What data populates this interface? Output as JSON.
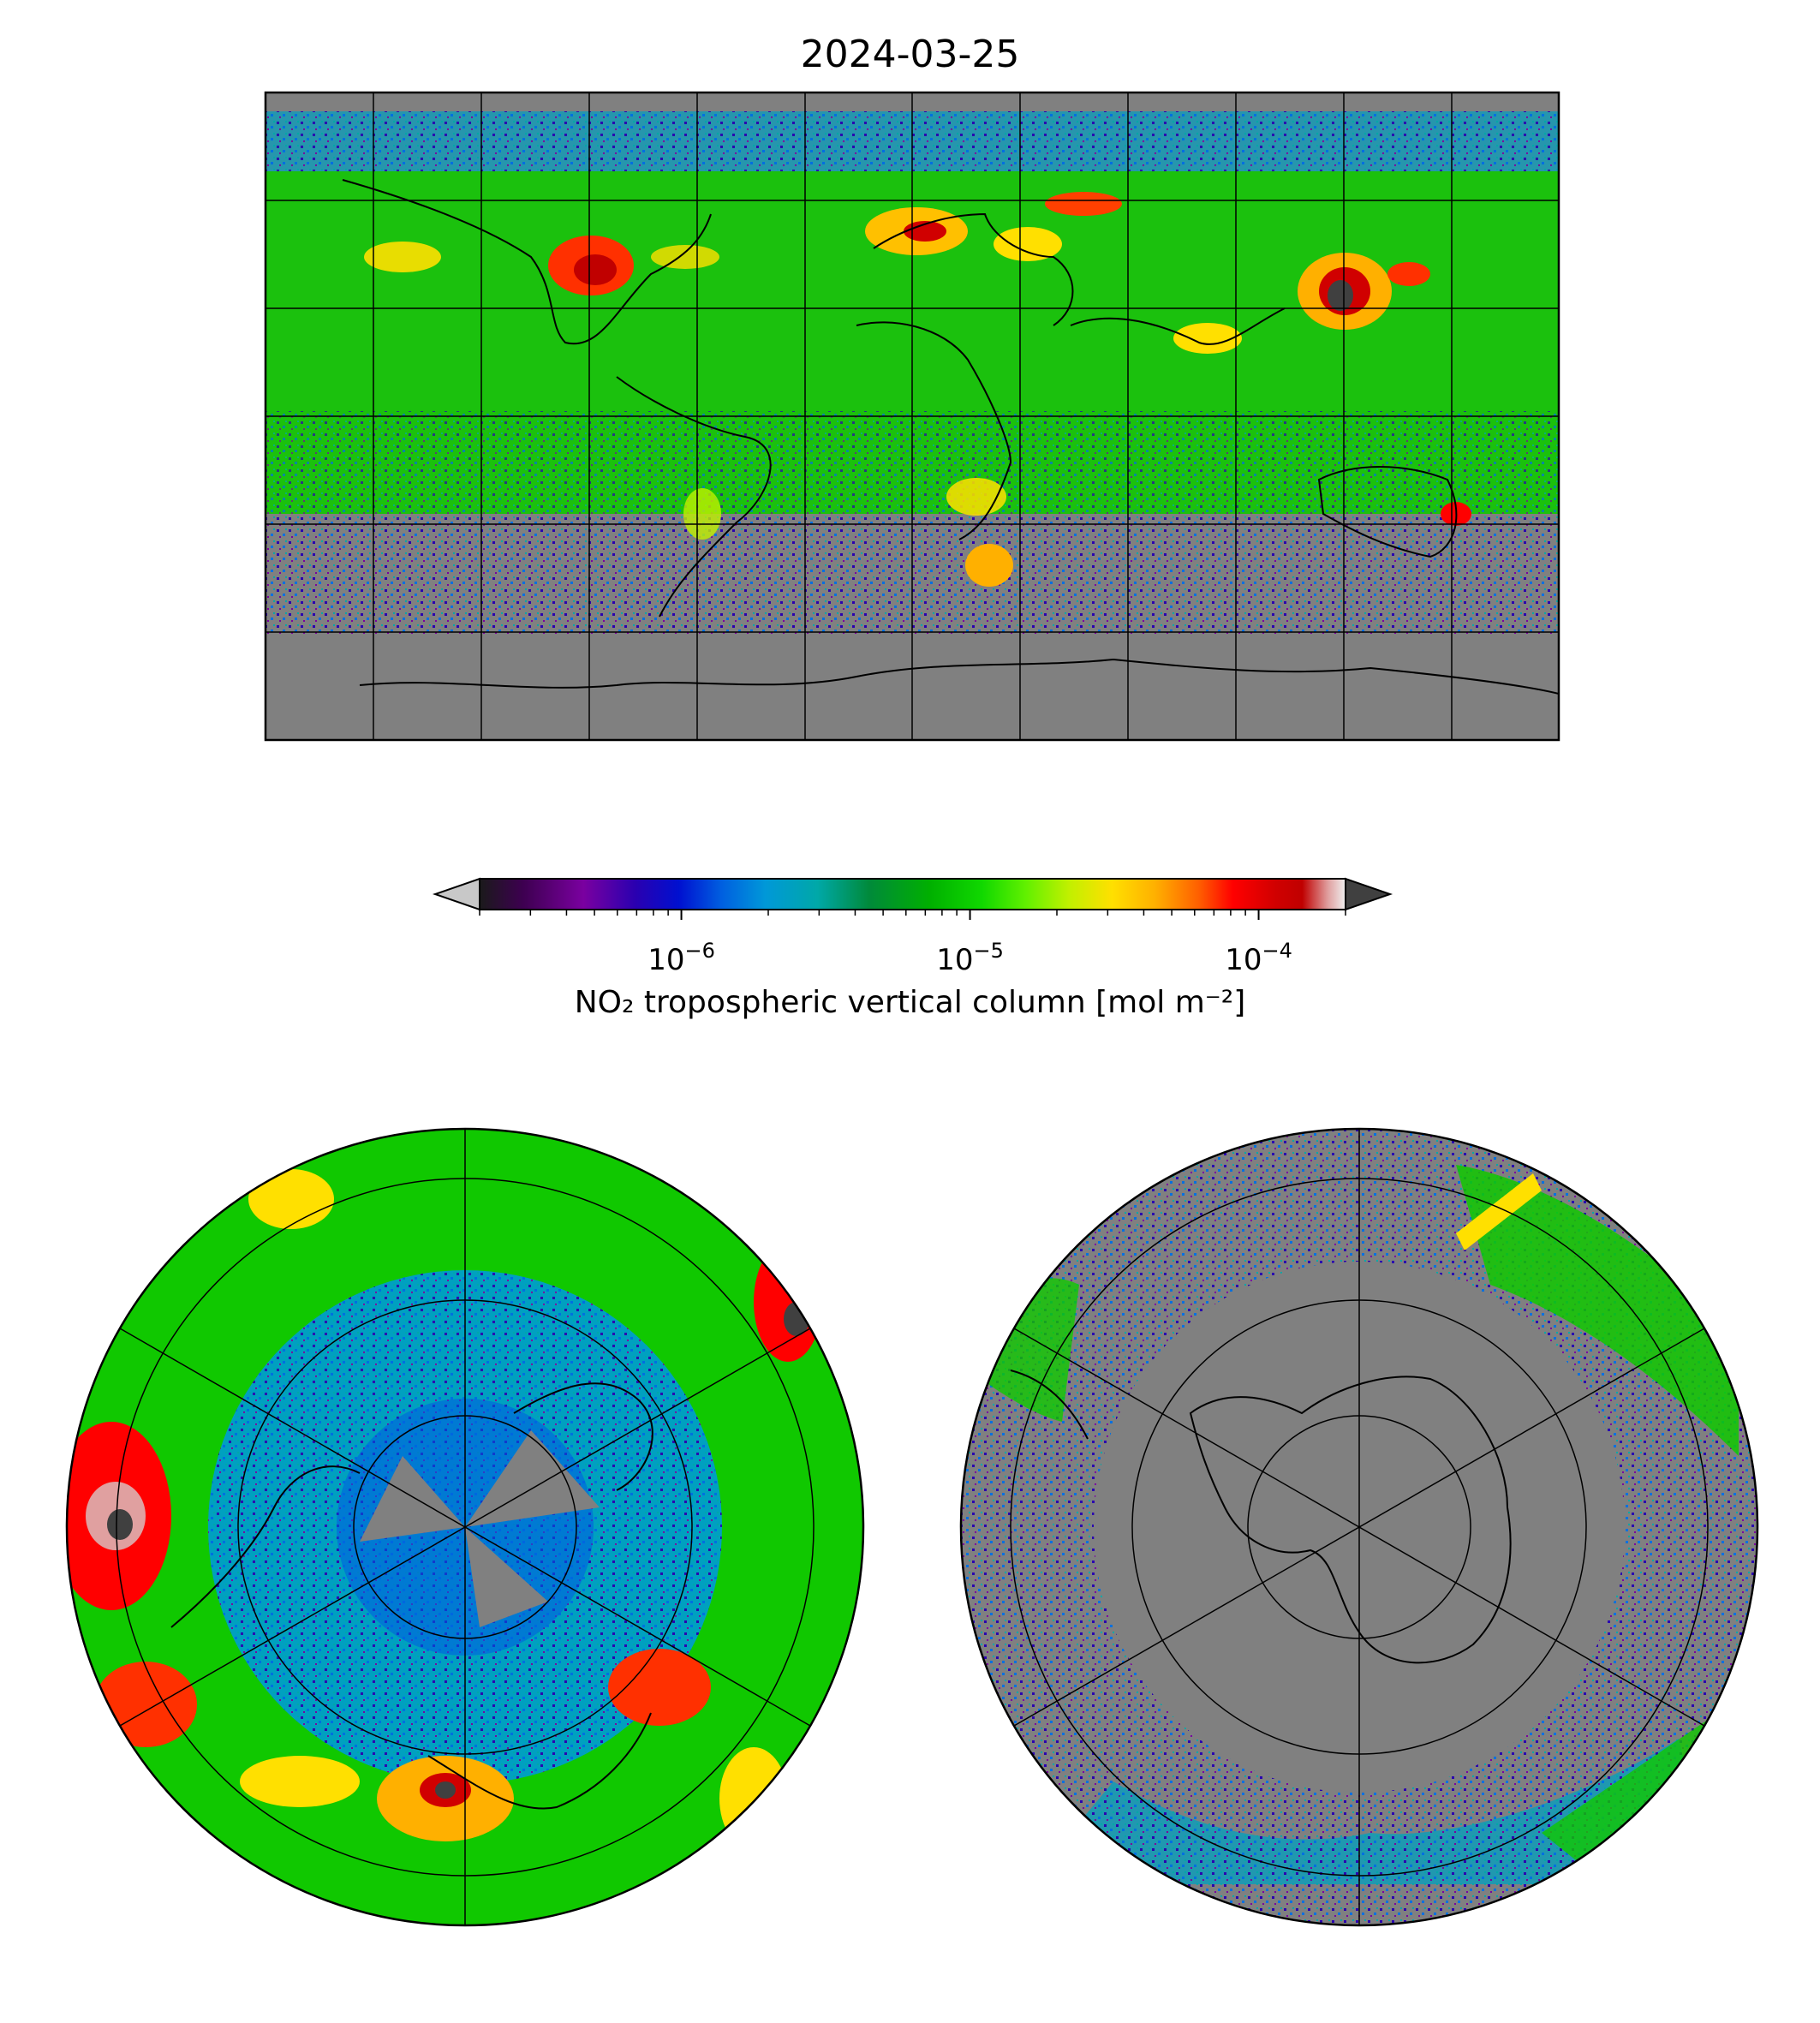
{
  "figure": {
    "title": "2024-03-25"
  },
  "colorbar": {
    "label": "NO₂ tropospheric vertical column [mol m⁻²]",
    "scale": "log",
    "range": [
      2e-07,
      0.0002
    ],
    "extend": "both",
    "ticks": [
      {
        "value": 1e-06,
        "base": "10",
        "exp": "−6"
      },
      {
        "value": 1e-05,
        "base": "10",
        "exp": "−5"
      },
      {
        "value": 0.0001,
        "base": "10",
        "exp": "−4"
      }
    ],
    "colors": [
      "#1a1a1a",
      "#3d0050",
      "#7a00a0",
      "#2a00b0",
      "#0010d0",
      "#0060e0",
      "#0098d8",
      "#00a8a8",
      "#008a3a",
      "#00b000",
      "#10d800",
      "#60f000",
      "#c0f000",
      "#ffe000",
      "#ffb000",
      "#ff6000",
      "#ff0000",
      "#d00000",
      "#c00000",
      "#e0a0a0",
      "#f0f0f0"
    ],
    "under_color": "#c8c8c8",
    "over_color": "#404040"
  },
  "maps": {
    "global": {
      "projection": "plate-carree",
      "no_data_color": "#808080"
    },
    "north_polar": {
      "projection": "north-polar-stereographic"
    },
    "south_polar": {
      "projection": "south-polar-stereographic"
    }
  }
}
